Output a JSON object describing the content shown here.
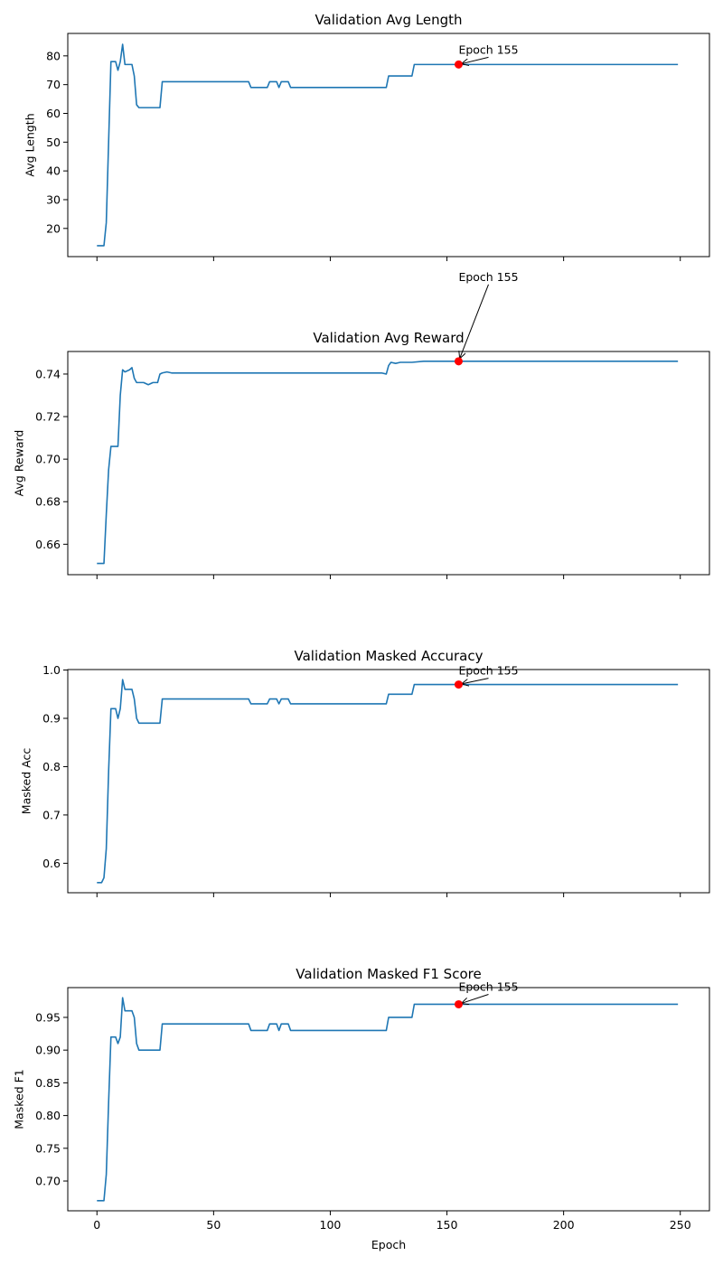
{
  "chart_data": [
    {
      "type": "line",
      "title": "Validation Avg Length",
      "xlabel": "",
      "ylabel": "Avg Length",
      "xlim": [
        -12.5,
        262.5
      ],
      "ylim": [
        10.2,
        87.8
      ],
      "xticks": [
        0,
        50,
        100,
        150,
        200,
        250
      ],
      "show_xticklabels": false,
      "yticks": [
        20,
        30,
        40,
        50,
        60,
        70,
        80
      ],
      "ytick_decimals": 0,
      "series_color": "#1f77b4",
      "x": [
        0,
        3,
        4,
        5,
        6,
        7,
        8,
        9,
        10,
        11,
        12,
        15,
        16,
        17,
        18,
        20,
        22,
        25,
        27,
        28,
        30,
        35,
        40,
        45,
        50,
        55,
        60,
        65,
        66,
        67,
        70,
        72,
        73,
        74,
        75,
        76,
        77,
        78,
        79,
        80,
        81,
        82,
        83,
        85,
        90,
        100,
        110,
        120,
        124,
        125,
        126,
        130,
        134,
        135,
        136,
        140,
        145,
        150,
        155,
        160,
        170,
        180,
        190,
        200,
        210,
        220,
        230,
        240,
        249
      ],
      "y": [
        14,
        14,
        22,
        50,
        78,
        78,
        78,
        75,
        78,
        84,
        77,
        77,
        73,
        63,
        62,
        62,
        62,
        62,
        62,
        71,
        71,
        71,
        71,
        71,
        71,
        71,
        71,
        71,
        69,
        69,
        69,
        69,
        69,
        71,
        71,
        71,
        71,
        69,
        71,
        71,
        71,
        71,
        69,
        69,
        69,
        69,
        69,
        69,
        69,
        73,
        73,
        73,
        73,
        73,
        77,
        77,
        77,
        77,
        77,
        77,
        77,
        77,
        77,
        77,
        77,
        77,
        77,
        77,
        77
      ],
      "highlight": {
        "x": 155,
        "y": 77,
        "label": "Epoch 155",
        "marker_color": "#ff0000"
      }
    },
    {
      "type": "line",
      "title": "Validation Avg Reward",
      "xlabel": "",
      "ylabel": "Avg Reward",
      "xlim": [
        -12.5,
        262.5
      ],
      "ylim": [
        0.6457,
        0.7506
      ],
      "xticks": [
        0,
        50,
        100,
        150,
        200,
        250
      ],
      "show_xticklabels": false,
      "yticks": [
        0.66,
        0.68,
        0.7,
        0.72,
        0.74
      ],
      "ytick_decimals": 2,
      "series_color": "#1f77b4",
      "x": [
        0,
        2,
        3,
        4,
        5,
        6,
        7,
        8,
        9,
        10,
        11,
        12,
        14,
        15,
        16,
        17,
        18,
        20,
        22,
        24,
        26,
        27,
        28,
        30,
        32,
        35,
        40,
        45,
        50,
        55,
        60,
        65,
        70,
        75,
        80,
        85,
        90,
        95,
        100,
        105,
        110,
        115,
        120,
        122,
        124,
        125,
        126,
        128,
        130,
        135,
        140,
        150,
        155,
        160,
        170,
        180,
        190,
        200,
        210,
        220,
        230,
        240,
        249
      ],
      "y": [
        0.651,
        0.651,
        0.651,
        0.674,
        0.695,
        0.706,
        0.706,
        0.706,
        0.706,
        0.73,
        0.742,
        0.741,
        0.742,
        0.743,
        0.738,
        0.736,
        0.736,
        0.736,
        0.735,
        0.736,
        0.736,
        0.74,
        0.7405,
        0.741,
        0.7405,
        0.7405,
        0.7405,
        0.7405,
        0.7405,
        0.7405,
        0.7405,
        0.7405,
        0.7405,
        0.7405,
        0.7405,
        0.7405,
        0.7405,
        0.7405,
        0.7405,
        0.7405,
        0.7405,
        0.7405,
        0.7405,
        0.7405,
        0.74,
        0.744,
        0.7455,
        0.745,
        0.7455,
        0.7455,
        0.746,
        0.746,
        0.746,
        0.746,
        0.746,
        0.746,
        0.746,
        0.746,
        0.746,
        0.746,
        0.746,
        0.746,
        0.746
      ],
      "highlight": {
        "x": 155,
        "y": 0.746,
        "label": "Epoch 155",
        "marker_color": "#ff0000"
      }
    },
    {
      "type": "line",
      "title": "Validation Masked Accuracy",
      "xlabel": "",
      "ylabel": "Masked Acc",
      "xlim": [
        -12.5,
        262.5
      ],
      "ylim": [
        0.539,
        1.001
      ],
      "xticks": [
        0,
        50,
        100,
        150,
        200,
        250
      ],
      "show_xticklabels": false,
      "yticks": [
        0.6,
        0.7,
        0.8,
        0.9,
        1.0
      ],
      "ytick_decimals": 1,
      "series_color": "#1f77b4",
      "x": [
        0,
        2,
        3,
        4,
        5,
        6,
        7,
        8,
        9,
        10,
        11,
        12,
        15,
        16,
        17,
        18,
        20,
        22,
        25,
        27,
        28,
        30,
        35,
        40,
        45,
        50,
        55,
        60,
        65,
        66,
        67,
        70,
        72,
        73,
        74,
        75,
        76,
        77,
        78,
        79,
        80,
        81,
        82,
        83,
        85,
        90,
        100,
        110,
        120,
        124,
        125,
        126,
        130,
        134,
        135,
        136,
        140,
        145,
        150,
        155,
        160,
        170,
        180,
        190,
        200,
        210,
        220,
        230,
        240,
        249
      ],
      "y": [
        0.56,
        0.56,
        0.57,
        0.63,
        0.79,
        0.92,
        0.92,
        0.92,
        0.9,
        0.92,
        0.98,
        0.96,
        0.96,
        0.94,
        0.9,
        0.89,
        0.89,
        0.89,
        0.89,
        0.89,
        0.94,
        0.94,
        0.94,
        0.94,
        0.94,
        0.94,
        0.94,
        0.94,
        0.94,
        0.93,
        0.93,
        0.93,
        0.93,
        0.93,
        0.94,
        0.94,
        0.94,
        0.94,
        0.93,
        0.94,
        0.94,
        0.94,
        0.94,
        0.93,
        0.93,
        0.93,
        0.93,
        0.93,
        0.93,
        0.93,
        0.95,
        0.95,
        0.95,
        0.95,
        0.95,
        0.97,
        0.97,
        0.97,
        0.97,
        0.97,
        0.97,
        0.97,
        0.97,
        0.97,
        0.97,
        0.97,
        0.97,
        0.97,
        0.97,
        0.97
      ],
      "highlight": {
        "x": 155,
        "y": 0.97,
        "label": "Epoch 155",
        "marker_color": "#ff0000"
      }
    },
    {
      "type": "line",
      "title": "Validation Masked F1 Score",
      "xlabel": "Epoch",
      "ylabel": "Masked F1",
      "xlim": [
        -12.5,
        262.5
      ],
      "ylim": [
        0.6545,
        0.9955
      ],
      "xticks": [
        0,
        50,
        100,
        150,
        200,
        250
      ],
      "show_xticklabels": true,
      "yticks": [
        0.7,
        0.75,
        0.8,
        0.85,
        0.9,
        0.95
      ],
      "ytick_decimals": 2,
      "series_color": "#1f77b4",
      "x": [
        0,
        2,
        3,
        4,
        5,
        6,
        7,
        8,
        9,
        10,
        11,
        12,
        15,
        16,
        17,
        18,
        20,
        22,
        25,
        27,
        28,
        30,
        35,
        40,
        45,
        50,
        55,
        60,
        65,
        66,
        67,
        70,
        72,
        73,
        74,
        75,
        76,
        77,
        78,
        79,
        80,
        81,
        82,
        83,
        85,
        90,
        100,
        110,
        120,
        124,
        125,
        126,
        130,
        134,
        135,
        136,
        140,
        145,
        150,
        155,
        160,
        170,
        180,
        190,
        200,
        210,
        220,
        230,
        240,
        249
      ],
      "y": [
        0.67,
        0.67,
        0.67,
        0.71,
        0.82,
        0.92,
        0.92,
        0.92,
        0.91,
        0.92,
        0.98,
        0.96,
        0.96,
        0.95,
        0.91,
        0.9,
        0.9,
        0.9,
        0.9,
        0.9,
        0.94,
        0.94,
        0.94,
        0.94,
        0.94,
        0.94,
        0.94,
        0.94,
        0.94,
        0.93,
        0.93,
        0.93,
        0.93,
        0.93,
        0.94,
        0.94,
        0.94,
        0.94,
        0.93,
        0.94,
        0.94,
        0.94,
        0.94,
        0.93,
        0.93,
        0.93,
        0.93,
        0.93,
        0.93,
        0.93,
        0.95,
        0.95,
        0.95,
        0.95,
        0.95,
        0.97,
        0.97,
        0.97,
        0.97,
        0.97,
        0.97,
        0.97,
        0.97,
        0.97,
        0.97,
        0.97,
        0.97,
        0.97,
        0.97,
        0.97
      ],
      "highlight": {
        "x": 155,
        "y": 0.97,
        "label": "Epoch 155",
        "marker_color": "#ff0000"
      }
    }
  ]
}
